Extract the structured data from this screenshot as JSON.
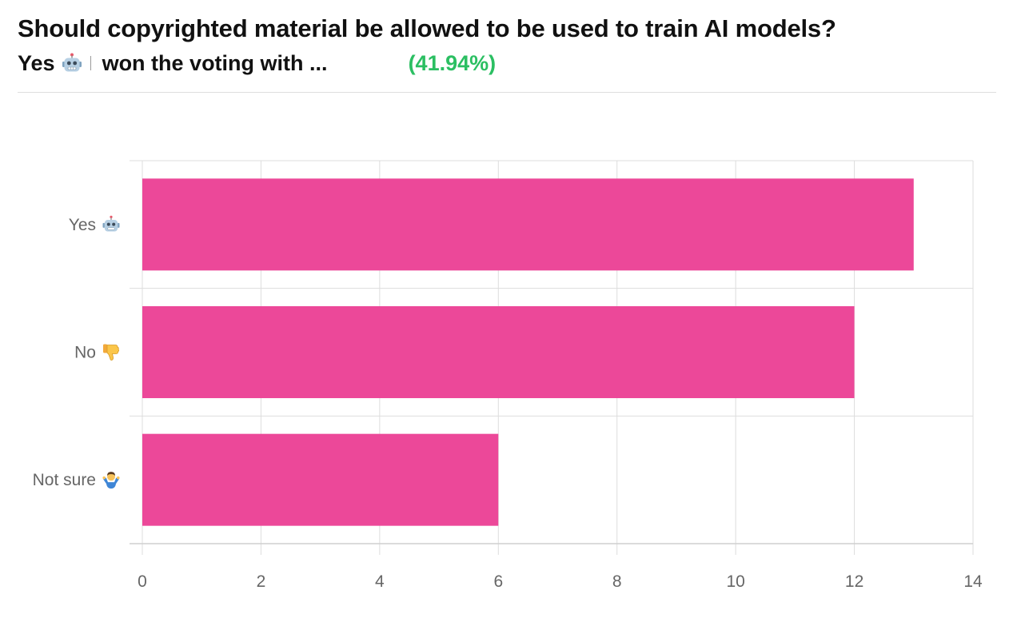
{
  "poll": {
    "question": "Should copyrighted material be allowed to be used to train AI models?",
    "winner_label": "Yes",
    "won_text": "won the voting with ...",
    "winner_percent": "(41.94%)",
    "winner_icon": "robot-face-icon"
  },
  "colors": {
    "bar": "#ec4899",
    "percent_text": "#2bbf62",
    "grid": "#dddddd",
    "tick_text": "#666666"
  },
  "chart_data": {
    "type": "bar",
    "orientation": "horizontal",
    "categories": [
      "Yes",
      "No",
      "Not sure"
    ],
    "category_icons": [
      "robot-face-icon",
      "thumbs-down-icon",
      "shrugging-person-icon"
    ],
    "values": [
      13,
      12,
      6
    ],
    "xlim": [
      0,
      14
    ],
    "x_ticks": [
      "0",
      "2",
      "4",
      "6",
      "8",
      "10",
      "12",
      "14"
    ],
    "grid": true,
    "legend": "none"
  }
}
